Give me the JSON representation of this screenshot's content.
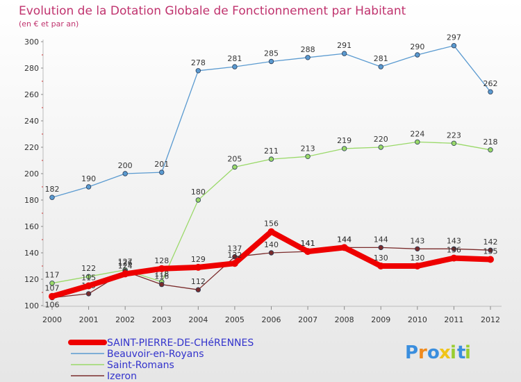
{
  "chart_data": {
    "type": "line",
    "title": "Evolution de la Dotation Globale de Fonctionnement par Habitant",
    "subtitle": "(en € et par an)",
    "xlabel": "",
    "ylabel": "",
    "ylim": [
      100,
      300
    ],
    "yticks": [
      "100",
      "120",
      "140",
      "160",
      "180",
      "200",
      "220",
      "240",
      "260",
      "280",
      "300"
    ],
    "categories": [
      "2000",
      "2001",
      "2002",
      "2003",
      "2004",
      "2005",
      "2006",
      "2007",
      "2008",
      "2009",
      "2010",
      "2011",
      "2012"
    ],
    "grid": false,
    "legend_position": "bottom-left",
    "series": [
      {
        "name": "Beauvoir-en-Royans",
        "color": "#5a9ad0",
        "values": [
          182,
          190,
          200,
          201,
          278,
          281,
          285,
          288,
          291,
          281,
          290,
          297,
          262
        ],
        "labels": [
          "182",
          "190",
          "200",
          "201",
          "278",
          "281",
          "285",
          "288",
          "291",
          "281",
          "290",
          "297",
          "262"
        ]
      },
      {
        "name": "Saint-Romans",
        "color": "#9ad969",
        "values": [
          117,
          122,
          127,
          118,
          180,
          205,
          211,
          213,
          219,
          220,
          224,
          223,
          218
        ],
        "labels": [
          "117",
          "122",
          "127",
          "118",
          "180",
          "205",
          "211",
          "213",
          "219",
          "220",
          "224",
          "223",
          "218"
        ]
      },
      {
        "name": "Izeron",
        "color": "#7a2b2b",
        "values": [
          106,
          109,
          126,
          116,
          112,
          137,
          140,
          141,
          144,
          144,
          143,
          143,
          142
        ],
        "labels": [
          "106",
          "109",
          "126",
          "116",
          "112",
          "137",
          "140",
          "141",
          "144",
          "144",
          "143",
          "143",
          "142"
        ]
      },
      {
        "name": "SAINT-PIERRE-DE-CHéRENNES",
        "color": "#ee0000",
        "values": [
          107,
          115,
          124,
          128,
          129,
          132,
          156,
          141,
          144,
          130,
          130,
          136,
          135
        ],
        "labels": [
          "107",
          "115",
          "124",
          "128",
          "129",
          "132",
          "156",
          "141",
          "144",
          "130",
          "130",
          "136",
          "135"
        ]
      }
    ]
  },
  "legend": [
    {
      "label": "SAINT-PIERRE-DE-CHéRENNES",
      "color": "#ee0000",
      "text_color": "#3333cc"
    },
    {
      "label": "Beauvoir-en-Royans",
      "color": "#5a9ad0",
      "text_color": "#3333cc"
    },
    {
      "label": "Saint-Romans",
      "color": "#9ad969",
      "text_color": "#3333cc"
    },
    {
      "label": "Izeron",
      "color": "#7a2b2b",
      "text_color": "#3333cc"
    }
  ],
  "logo": {
    "text": "Proxiti",
    "letters": [
      "P",
      "r",
      "o",
      "x",
      "i",
      "t",
      "i"
    ],
    "colors": [
      "#3a8ede",
      "#f08a1c",
      "#3a8ede",
      "#f0c419",
      "#9acd32",
      "#3a8ede",
      "#9acd32"
    ]
  }
}
